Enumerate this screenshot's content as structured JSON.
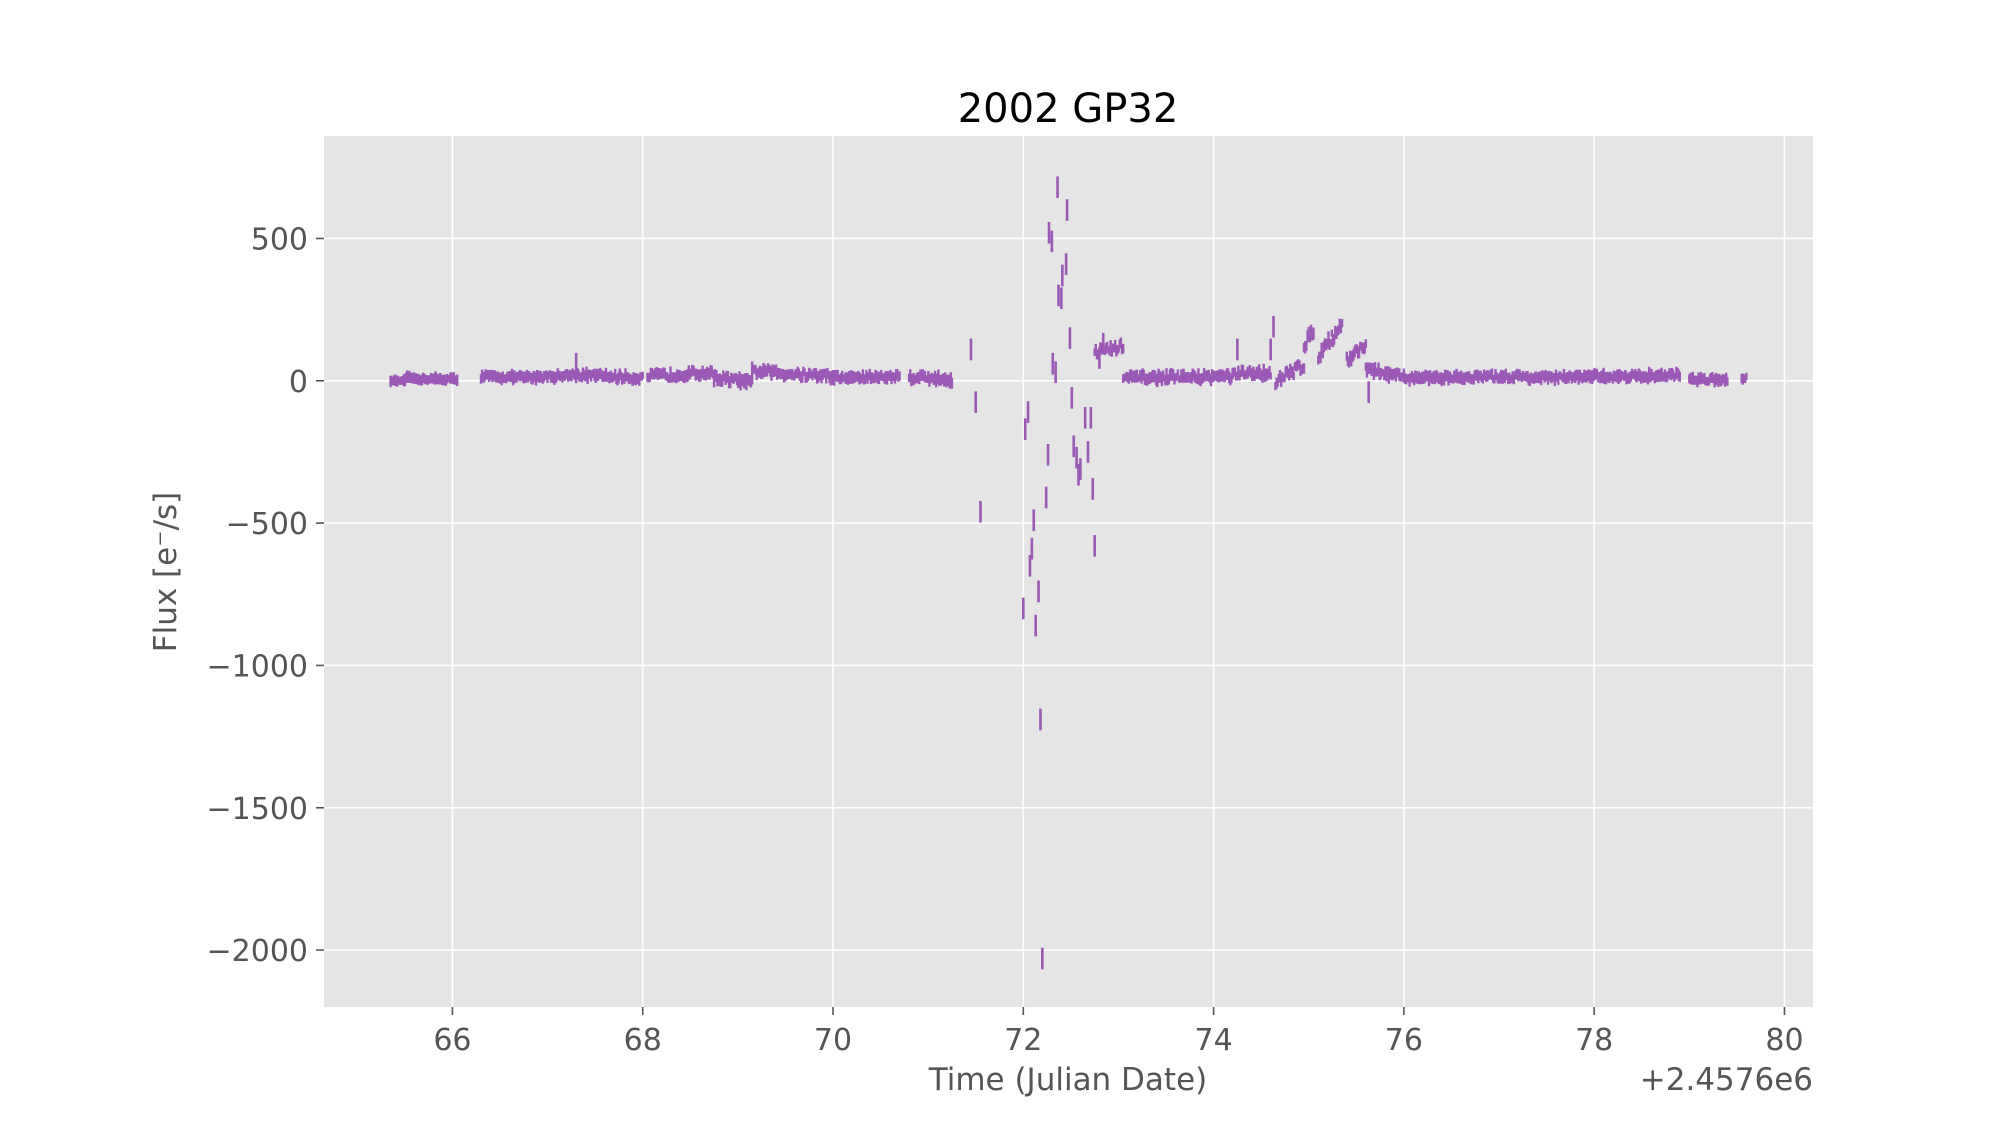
{
  "chart_data": {
    "type": "scatter",
    "style": "errorbar",
    "title": "2002 GP32",
    "xlabel": "Time (Julian Date)",
    "ylabel": "Flux [e⁻/s]",
    "x_offset_label": "+2.4576e6",
    "x_offset": 2457600,
    "xlim": [
      64.65,
      80.3
    ],
    "ylim": [
      -2200,
      860
    ],
    "xticks": [
      66,
      68,
      70,
      72,
      74,
      76,
      78,
      80
    ],
    "xtick_labels": [
      "66",
      "68",
      "70",
      "72",
      "74",
      "76",
      "78",
      "80"
    ],
    "yticks": [
      500,
      0,
      -500,
      -1000,
      -1500,
      -2000
    ],
    "ytick_labels": [
      "500",
      "0",
      "−500",
      "−1000",
      "−1500",
      "−2000"
    ],
    "grid": true,
    "colors": {
      "series": "#9b59b6",
      "plot_background": "#e5e5e5",
      "grid": "#ffffff"
    },
    "series": [
      {
        "dense_segments": [
          {
            "x": [
              65.35,
              65.5
            ],
            "center": [
              0,
              0
            ],
            "noise": 5
          },
          {
            "x": [
              65.5,
              66.05
            ],
            "center": [
              8,
              5
            ],
            "noise": 14
          },
          {
            "x": [
              66.3,
              66.65
            ],
            "center": [
              15,
              12
            ],
            "noise": 18
          },
          {
            "x": [
              66.65,
              67.3
            ],
            "center": [
              10,
              20
            ],
            "noise": 20
          },
          {
            "x": [
              67.3,
              68.0
            ],
            "center": [
              20,
              10
            ],
            "noise": 22
          },
          {
            "x": [
              68.05,
              68.75
            ],
            "center": [
              15,
              30
            ],
            "noise": 25
          },
          {
            "x": [
              68.75,
              69.15
            ],
            "center": [
              10,
              -5
            ],
            "noise": 28
          },
          {
            "x": [
              69.15,
              70.0
            ],
            "center": [
              35,
              15
            ],
            "noise": 28
          },
          {
            "x": [
              70.0,
              70.7
            ],
            "center": [
              10,
              15
            ],
            "noise": 22
          },
          {
            "x": [
              70.8,
              71.25
            ],
            "center": [
              15,
              5
            ],
            "noise": 28
          },
          {
            "x": [
              72.75,
              73.05
            ],
            "center": [
              100,
              120
            ],
            "noise": 35
          },
          {
            "x": [
              73.05,
              74.2
            ],
            "center": [
              10,
              15
            ],
            "noise": 25
          },
          {
            "x": [
              74.2,
              74.6
            ],
            "center": [
              20,
              30
            ],
            "noise": 30
          },
          {
            "x": [
              74.65,
              74.95
            ],
            "center": [
              -10,
              60
            ],
            "noise": 40
          },
          {
            "x": [
              74.95,
              75.05
            ],
            "center": [
              120,
              180
            ],
            "noise": 40
          },
          {
            "x": [
              75.1,
              75.35
            ],
            "center": [
              90,
              200
            ],
            "noise": 40
          },
          {
            "x": [
              75.4,
              75.6
            ],
            "center": [
              70,
              130
            ],
            "noise": 40
          },
          {
            "x": [
              75.6,
              76.0
            ],
            "center": [
              40,
              10
            ],
            "noise": 30
          },
          {
            "x": [
              76.0,
              77.3
            ],
            "center": [
              10,
              15
            ],
            "noise": 20
          },
          {
            "x": [
              77.3,
              78.1
            ],
            "center": [
              10,
              15
            ],
            "noise": 20
          },
          {
            "x": [
              78.1,
              78.9
            ],
            "center": [
              15,
              20
            ],
            "noise": 20
          },
          {
            "x": [
              79.0,
              79.4
            ],
            "center": [
              5,
              5
            ],
            "noise": 18
          },
          {
            "x": [
              79.55,
              79.6
            ],
            "center": [
              10,
              10
            ],
            "noise": 15
          }
        ],
        "points": [
          {
            "x": 67.3,
            "y": 60
          },
          {
            "x": 71.45,
            "y": 110
          },
          {
            "x": 71.5,
            "y": -75
          },
          {
            "x": 71.55,
            "y": -460
          },
          {
            "x": 72.02,
            "y": -170
          },
          {
            "x": 72.05,
            "y": -110
          },
          {
            "x": 72.0,
            "y": -800
          },
          {
            "x": 72.07,
            "y": -650
          },
          {
            "x": 72.09,
            "y": -590
          },
          {
            "x": 72.11,
            "y": -490
          },
          {
            "x": 72.13,
            "y": -860
          },
          {
            "x": 72.16,
            "y": -740
          },
          {
            "x": 72.18,
            "y": -1190
          },
          {
            "x": 72.2,
            "y": -2030
          },
          {
            "x": 72.24,
            "y": -410
          },
          {
            "x": 72.26,
            "y": -260
          },
          {
            "x": 72.27,
            "y": 520
          },
          {
            "x": 72.3,
            "y": 490
          },
          {
            "x": 72.31,
            "y": 60
          },
          {
            "x": 72.34,
            "y": 30
          },
          {
            "x": 72.36,
            "y": 680
          },
          {
            "x": 72.37,
            "y": 300
          },
          {
            "x": 72.4,
            "y": 290
          },
          {
            "x": 72.41,
            "y": 370
          },
          {
            "x": 72.45,
            "y": 410
          },
          {
            "x": 72.46,
            "y": 600
          },
          {
            "x": 72.49,
            "y": 150
          },
          {
            "x": 72.51,
            "y": -60
          },
          {
            "x": 72.53,
            "y": -230
          },
          {
            "x": 72.56,
            "y": -270
          },
          {
            "x": 72.58,
            "y": -330
          },
          {
            "x": 72.6,
            "y": -310
          },
          {
            "x": 72.65,
            "y": -130
          },
          {
            "x": 72.68,
            "y": -250
          },
          {
            "x": 72.71,
            "y": -130
          },
          {
            "x": 72.73,
            "y": -380
          },
          {
            "x": 72.75,
            "y": -580
          },
          {
            "x": 72.8,
            "y": 80
          },
          {
            "x": 72.84,
            "y": 130
          },
          {
            "x": 74.25,
            "y": 110
          },
          {
            "x": 74.6,
            "y": 110
          },
          {
            "x": 74.63,
            "y": 190
          },
          {
            "x": 75.63,
            "y": -40
          }
        ]
      }
    ]
  }
}
